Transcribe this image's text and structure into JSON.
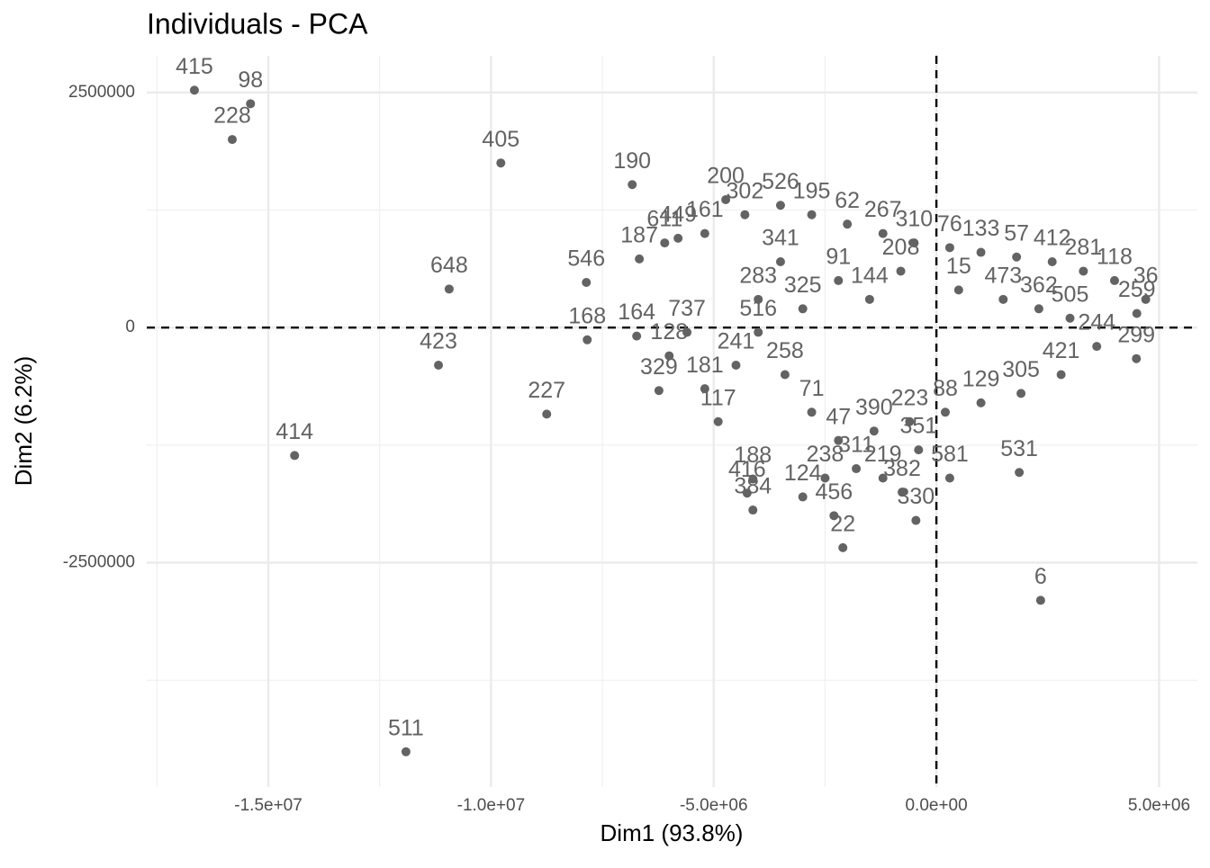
{
  "chart_data": {
    "type": "scatter",
    "title": "Individuals - PCA",
    "x_label": "Dim1 (93.8%)",
    "y_label": "Dim2 (6.2%)",
    "xlim": [
      -17730000,
      5860000
    ],
    "ylim": [
      -4885000,
      2890000
    ],
    "xticks": [
      {
        "value": -15000000,
        "label": "-1.5e+07"
      },
      {
        "value": -10000000,
        "label": "-1.0e+07"
      },
      {
        "value": -5000000,
        "label": "-5.0e+06"
      },
      {
        "value": 0,
        "label": "0.0e+00"
      },
      {
        "value": 5000000,
        "label": "5.0e+06"
      }
    ],
    "yticks": [
      2500000,
      0,
      -2500000
    ],
    "x_minor_ticks": [
      -17500000,
      -12500000,
      -7500000,
      -2500000
    ],
    "y_minor_ticks": [
      1250000,
      -1250000,
      -3750000
    ],
    "hline": 0,
    "vline": 0,
    "grid": true,
    "color": "#636363",
    "labels": [
      "415",
      "98",
      "228",
      "405",
      "190",
      "648",
      "546",
      "168",
      "423",
      "227",
      "414",
      "511",
      "6",
      "531",
      "299",
      "330",
      "187",
      "164",
      "329",
      "200",
      "188",
      "416",
      "384",
      "382",
      "22",
      "195",
      "62",
      "267",
      "310",
      "76",
      "133",
      "57",
      "412",
      "281",
      "118",
      "36",
      "259",
      "341",
      "283",
      "325",
      "91",
      "144",
      "208",
      "15",
      "473",
      "362",
      "505",
      "244",
      "421",
      "305",
      "129",
      "88",
      "223",
      "390",
      "47",
      "71",
      "258",
      "241",
      "181",
      "117",
      "128",
      "737",
      "516",
      "311",
      "238",
      "124",
      "456",
      "219",
      "351",
      "581",
      "161",
      "611",
      "449",
      "302",
      "526"
    ],
    "x": [
      -16660000,
      -15400000,
      -15810000,
      -9780000,
      -6830000,
      -10940000,
      -7860000,
      -7840000,
      -11180000,
      -8750000,
      -14410000,
      -11910000,
      2340000,
      1860000,
      4490000,
      -460000,
      -6670000,
      -6730000,
      -6230000,
      -4730000,
      -4120000,
      -4250000,
      -4120000,
      -770000,
      -2100000,
      -2800000,
      -2000000,
      -1200000,
      -500000,
      300000,
      1000000,
      1800000,
      2600000,
      3300000,
      4000000,
      4700000,
      4500000,
      -3500000,
      -4000000,
      -3000000,
      -2200000,
      -1500000,
      -800000,
      500000,
      1500000,
      2300000,
      3000000,
      3600000,
      2800000,
      1900000,
      1000000,
      200000,
      -600000,
      -1400000,
      -2200000,
      -2800000,
      -3400000,
      -4500000,
      -5200000,
      -4900000,
      -6000000,
      -5600000,
      -4000000,
      -1800000,
      -2500000,
      -3000000,
      -2300000,
      -1200000,
      -400000,
      300000,
      -5200000,
      -6100000,
      -5800000,
      -4300000,
      -3500000
    ],
    "y": [
      2524000,
      2380000,
      2000000,
      1750000,
      1520000,
      410000,
      480000,
      -130000,
      -400000,
      -920000,
      -1360000,
      -4510000,
      -2900000,
      -1540000,
      -330000,
      -2050000,
      730000,
      -90000,
      -670000,
      1360000,
      -1610000,
      -1760000,
      -1940000,
      -1750000,
      -2340000,
      1200000,
      1100000,
      1000000,
      900000,
      850000,
      800000,
      750000,
      700000,
      600000,
      500000,
      300000,
      150000,
      700000,
      300000,
      200000,
      500000,
      300000,
      600000,
      400000,
      300000,
      200000,
      100000,
      -200000,
      -500000,
      -700000,
      -800000,
      -900000,
      -1000000,
      -1100000,
      -1200000,
      -900000,
      -500000,
      -400000,
      -650000,
      -1000000,
      -300000,
      -50000,
      -50000,
      -1500000,
      -1600000,
      -1800000,
      -2000000,
      -1600000,
      -1300000,
      -1600000,
      1000000,
      900000,
      950000,
      1200000,
      1300000
    ]
  }
}
